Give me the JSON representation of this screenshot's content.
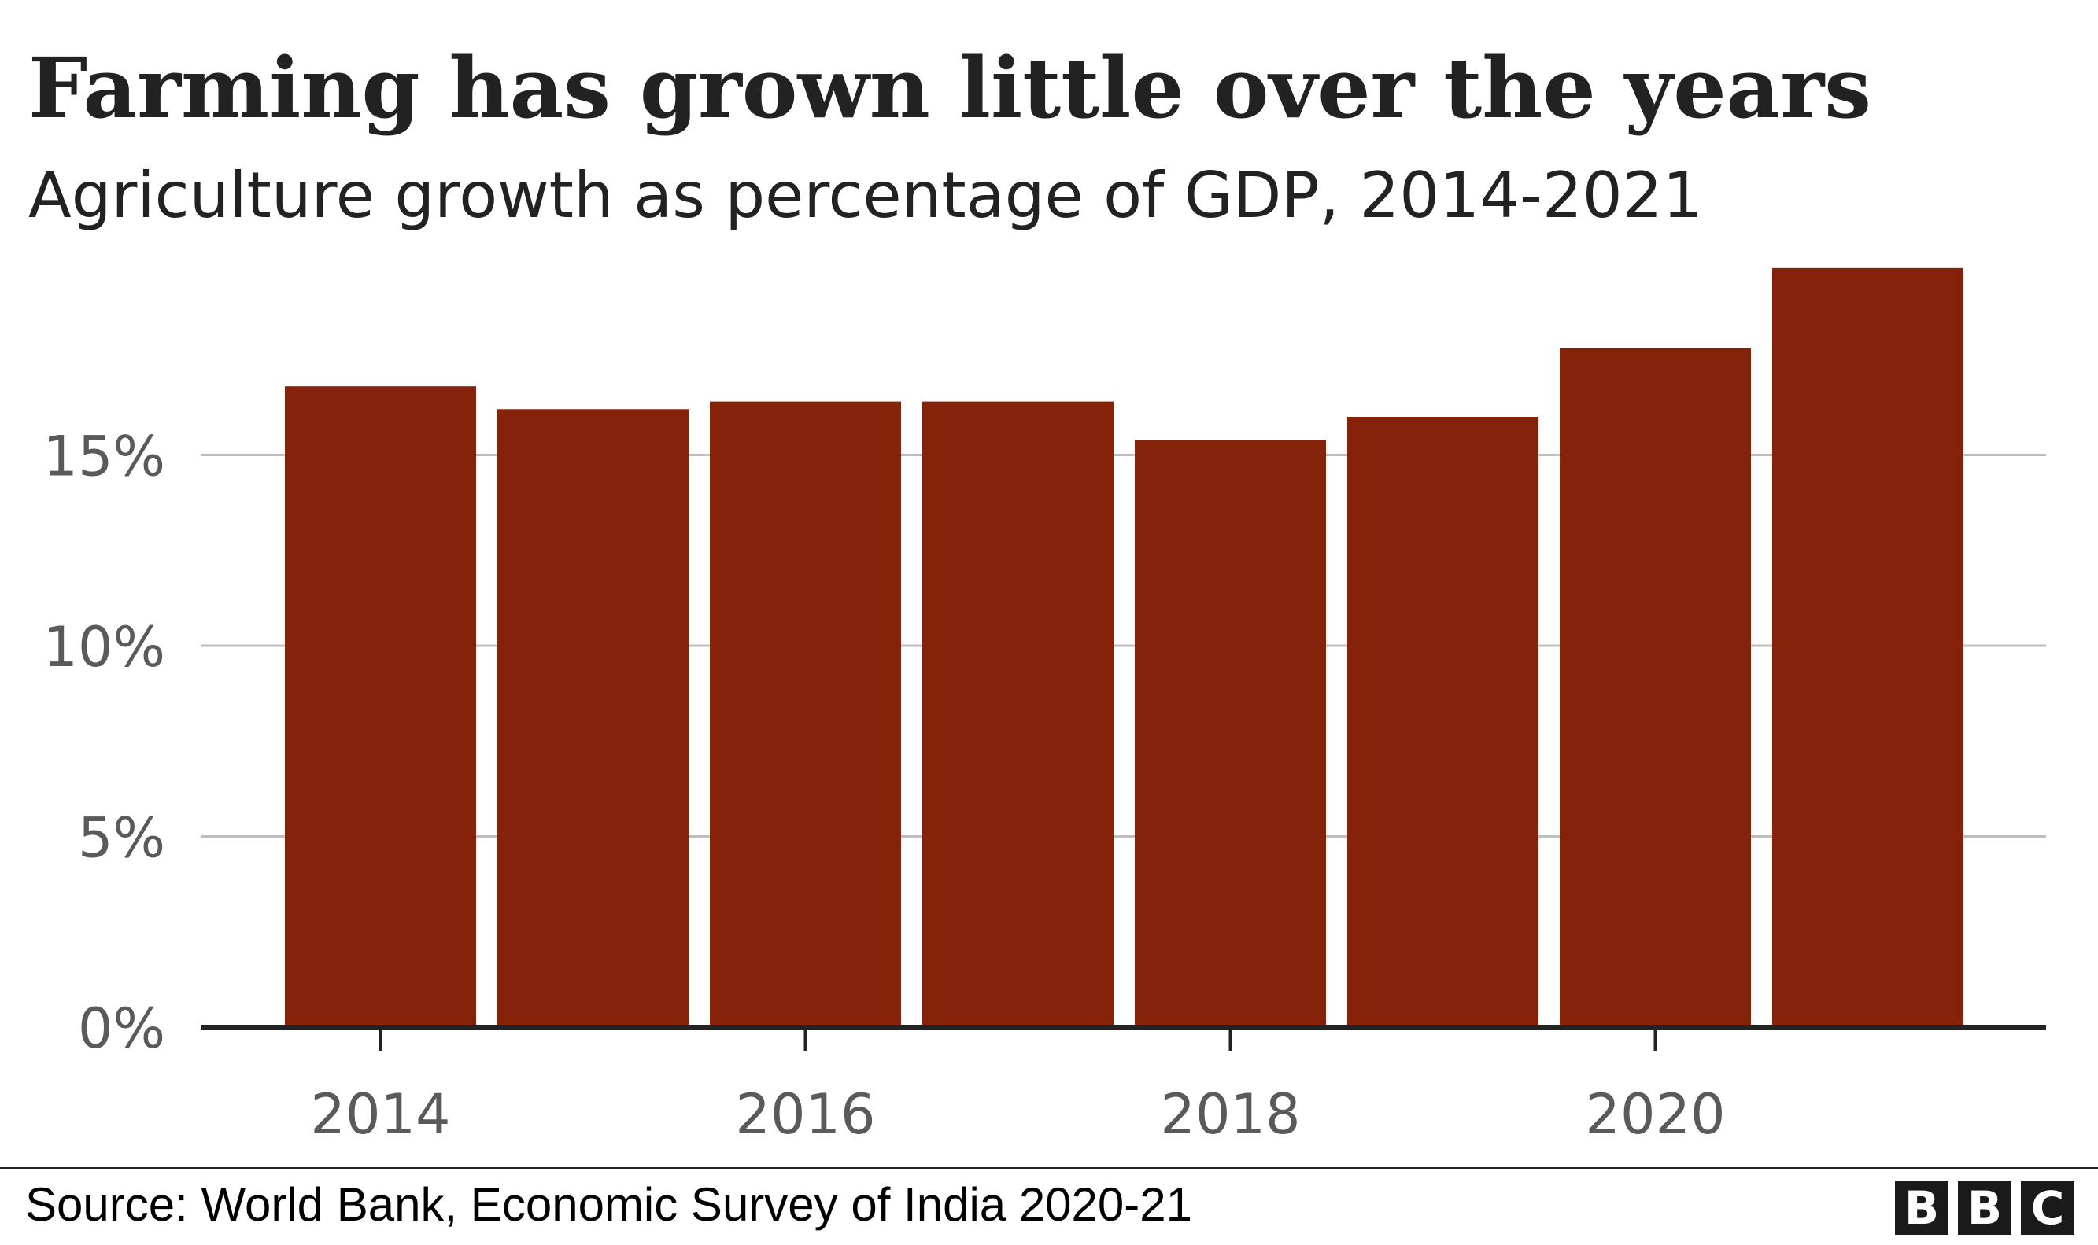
{
  "chart_data": {
    "type": "bar",
    "title": "Farming has grown little over the years",
    "subtitle": "Agriculture growth as percentage of GDP, 2014-2021",
    "categories": [
      "2014",
      "2015",
      "2016",
      "2017",
      "2018",
      "2019",
      "2020",
      "2021"
    ],
    "values": [
      16.8,
      16.2,
      16.4,
      16.4,
      15.4,
      16.0,
      17.8,
      19.9
    ],
    "x_tick_labels": [
      "2014",
      "2016",
      "2018",
      "2020"
    ],
    "y_ticks": [
      0,
      5,
      10,
      15
    ],
    "y_tick_labels": [
      "0%",
      "5%",
      "10%",
      "15%"
    ],
    "ylim": [
      0,
      20
    ],
    "xlabel": "",
    "ylabel": "",
    "grid": true,
    "legend": "none",
    "bar_color": "#842309"
  },
  "footer": {
    "source": "Source: World Bank, Economic Survey of India 2020-21",
    "logo_letters": [
      "B",
      "B",
      "C"
    ]
  },
  "colors": {
    "text": "#222222",
    "tick_text": "#5a5a5a",
    "grid": "#bdbdbd",
    "axis": "#222222",
    "bar": "#842309"
  }
}
